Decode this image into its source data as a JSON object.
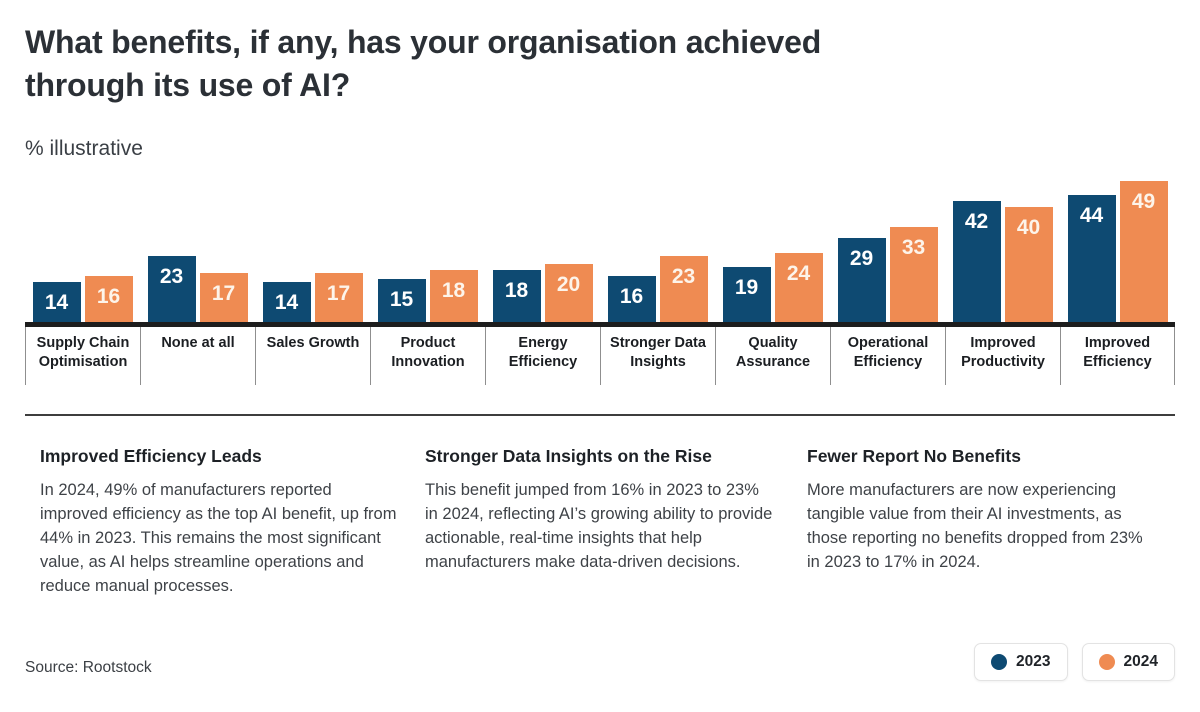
{
  "title": {
    "line1": "What benefits, if any, has your organisation achieved",
    "line2": "through its use of AI?"
  },
  "subtitle": "% illustrative",
  "chart_data": {
    "type": "bar",
    "title": "What benefits, if any, has your organisation achieved through its use of AI?",
    "unit": "% illustrative",
    "categories": [
      "Supply Chain Optimisation",
      "None at all",
      "Sales Growth",
      "Product Innovation",
      "Energy Efficiency",
      "Stronger Data Insights",
      "Quality Assurance",
      "Operational Efficiency",
      "Improved Productivity",
      "Improved Efficiency"
    ],
    "series": [
      {
        "name": "2023",
        "color": "#0E4A72",
        "label_color": "#ffffff",
        "values": [
          14,
          23,
          14,
          15,
          18,
          16,
          19,
          29,
          42,
          44
        ]
      },
      {
        "name": "2024",
        "color": "#EF8B52",
        "label_color": "#fdf4ea",
        "values": [
          16,
          17,
          17,
          18,
          20,
          23,
          24,
          33,
          40,
          49
        ]
      }
    ],
    "ylim": [
      0,
      49
    ],
    "grid": false,
    "bar_labels": true,
    "legend_position": "bottom-right"
  },
  "insights": [
    {
      "heading": "Improved Efficiency Leads",
      "body": "In 2024, 49% of manufacturers reported improved efficiency as the top AI benefit, up from 44% in 2023. This remains the most significant value, as AI helps streamline operations and reduce manual processes."
    },
    {
      "heading": "Stronger Data Insights on the Rise",
      "body": "This benefit jumped from 16% in 2023 to 23% in 2024, reflecting AI’s growing ability to provide actionable, real-time insights that help manufacturers make data-driven decisions."
    },
    {
      "heading": "Fewer Report No Benefits",
      "body": "More manufacturers are now experiencing tangible value from their AI investments, as those reporting no benefits dropped from 23% in 2023 to 17% in 2024."
    }
  ],
  "source": "Source: Rootstock"
}
